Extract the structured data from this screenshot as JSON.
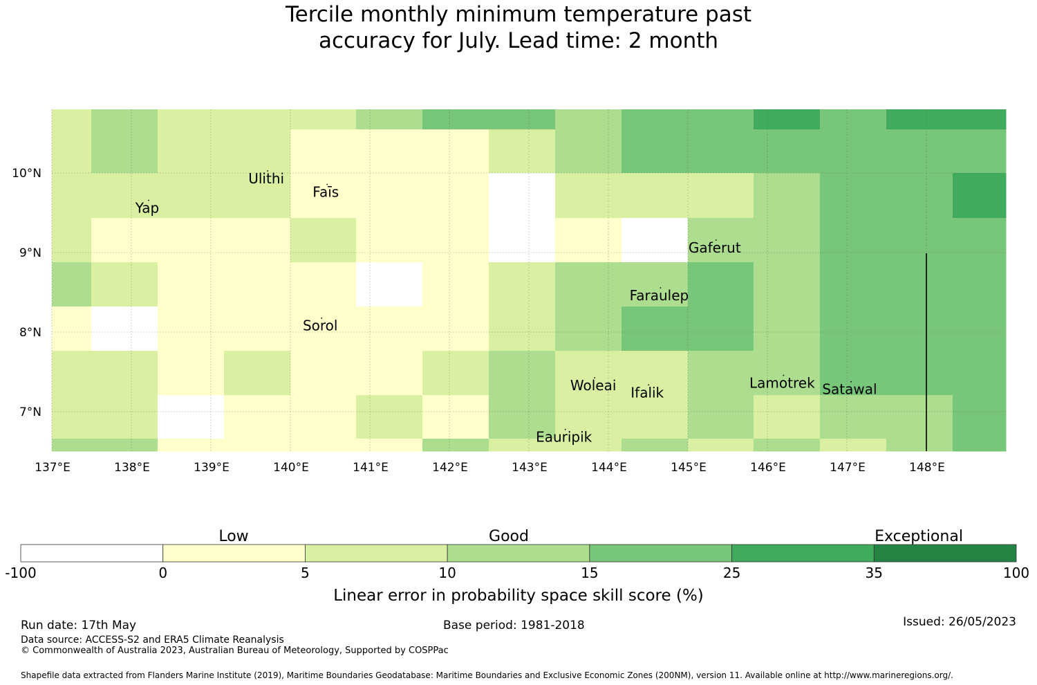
{
  "title_line1": "Tercile monthly minimum temperature past",
  "title_line2": "accuracy for July. Lead time: 2 month",
  "map": {
    "lon_labels": [
      "137°E",
      "138°E",
      "139°E",
      "140°E",
      "141°E",
      "142°E",
      "143°E",
      "144°E",
      "145°E",
      "146°E",
      "147°E",
      "148°E"
    ],
    "lat_labels": [
      "10°N",
      "9°N",
      "8°N",
      "7°N"
    ],
    "lon_values": [
      137,
      138,
      139,
      140,
      141,
      142,
      143,
      144,
      145,
      146,
      147,
      148
    ],
    "lat_values": [
      10,
      9,
      8,
      7
    ],
    "places": [
      {
        "name": "Ulithi",
        "lon": 139.7,
        "lat": 9.87
      },
      {
        "name": "Faīs",
        "lon": 140.45,
        "lat": 9.7
      },
      {
        "name": "Yap",
        "lon": 138.2,
        "lat": 9.5
      },
      {
        "name": "Gaferut",
        "lon": 145.35,
        "lat": 9.0
      },
      {
        "name": "Faraulep",
        "lon": 144.65,
        "lat": 8.4
      },
      {
        "name": "Sorol",
        "lon": 140.38,
        "lat": 8.02
      },
      {
        "name": "Woleai",
        "lon": 143.82,
        "lat": 7.27
      },
      {
        "name": "Ifalik",
        "lon": 144.5,
        "lat": 7.18
      },
      {
        "name": "Lamotrek",
        "lon": 146.2,
        "lat": 7.3
      },
      {
        "name": "Satawal",
        "lon": 147.05,
        "lat": 7.22
      },
      {
        "name": "Eauripik",
        "lon": 143.45,
        "lat": 6.62
      }
    ],
    "grid_rows": [
      [
        2,
        3,
        2,
        2,
        2,
        2,
        3,
        4,
        4,
        4,
        4,
        3,
        3,
        4,
        4,
        4,
        4,
        5,
        5,
        4,
        4,
        5,
        5,
        5
      ],
      [
        2,
        3,
        2,
        2,
        2,
        2,
        1,
        1,
        1,
        1,
        1,
        1,
        2,
        2,
        3,
        3,
        4,
        4,
        4,
        4,
        4,
        4,
        4,
        4
      ],
      [
        2,
        2,
        2,
        2,
        2,
        2,
        1,
        1,
        1,
        1,
        1,
        1,
        0,
        0,
        2,
        2,
        2,
        2,
        2,
        2,
        3,
        3,
        4,
        4,
        4,
        4,
        5
      ],
      [
        2,
        1,
        1,
        1,
        1,
        1,
        2,
        2,
        1,
        1,
        1,
        1,
        0,
        0,
        1,
        1,
        0,
        0,
        3,
        3,
        3,
        3,
        4,
        4,
        4,
        4
      ],
      [
        3,
        2,
        2,
        1,
        1,
        1,
        1,
        1,
        0,
        0,
        1,
        1,
        2,
        2,
        3,
        3,
        3,
        3,
        4,
        4,
        3,
        3,
        4,
        4,
        4,
        4
      ],
      [
        1,
        0,
        0,
        1,
        1,
        1,
        1,
        1,
        1,
        1,
        1,
        1,
        2,
        2,
        3,
        3,
        4,
        4,
        4,
        4,
        3,
        3,
        4,
        4,
        4,
        4
      ],
      [
        2,
        2,
        2,
        1,
        1,
        2,
        2,
        1,
        1,
        1,
        1,
        1,
        2,
        2,
        3,
        3,
        2,
        2,
        2,
        2,
        3,
        3,
        3,
        3,
        4,
        4,
        4,
        4
      ],
      [
        2,
        2,
        2,
        0,
        0,
        1,
        1,
        1,
        1,
        1,
        2,
        2,
        1,
        1,
        3,
        3,
        2,
        2,
        2,
        2,
        3,
        3,
        2,
        2,
        3,
        3,
        3,
        3,
        4,
        4
      ],
      [
        3,
        3,
        3,
        1,
        1,
        1,
        1,
        1,
        1,
        1,
        1,
        1,
        3,
        3,
        2,
        2,
        3,
        3,
        2,
        2,
        2,
        2,
        3,
        3,
        2,
        2,
        3,
        3,
        4,
        4
      ]
    ],
    "cells": [
      {
        "lon0": 137.0,
        "lon1": 137.5,
        "lat0": 10.6,
        "lat1": 10.8,
        "cat": 2
      },
      {
        "lon0": 137.5,
        "lon1": 138.33,
        "lat0": 10.0,
        "lat1": 10.8,
        "cat": 3
      },
      {
        "lon0": 138.33,
        "lon1": 139.17,
        "lat0": 10.6,
        "lat1": 10.8,
        "cat": 2
      },
      {
        "lon0": 139.17,
        "lon1": 140.0,
        "lat0": 10.6,
        "lat1": 10.8,
        "cat": 2
      },
      {
        "lon0": 140.0,
        "lon1": 140.83,
        "lat0": 10.6,
        "lat1": 10.8,
        "cat": 2
      },
      {
        "lon0": 140.83,
        "lon1": 141.67,
        "lat0": 10.6,
        "lat1": 10.8,
        "cat": 3
      },
      {
        "lon0": 141.67,
        "lon1": 142.5,
        "lat0": 10.6,
        "lat1": 10.8,
        "cat": 4
      },
      {
        "lon0": 142.5,
        "lon1": 143.33,
        "lat0": 10.6,
        "lat1": 10.8,
        "cat": 4
      },
      {
        "lon0": 143.33,
        "lon1": 144.17,
        "lat0": 10.6,
        "lat1": 10.8,
        "cat": 3
      },
      {
        "lon0": 144.17,
        "lon1": 145.0,
        "lat0": 10.6,
        "lat1": 10.8,
        "cat": 4
      },
      {
        "lon0": 145.0,
        "lon1": 145.83,
        "lat0": 10.6,
        "lat1": 10.8,
        "cat": 4
      },
      {
        "lon0": 145.83,
        "lon1": 146.67,
        "lat0": 10.6,
        "lat1": 10.8,
        "cat": 5
      },
      {
        "lon0": 146.67,
        "lon1": 147.5,
        "lat0": 10.6,
        "lat1": 10.8,
        "cat": 4
      },
      {
        "lon0": 147.5,
        "lon1": 148.33,
        "lat0": 10.6,
        "lat1": 10.8,
        "cat": 5
      },
      {
        "lon0": 148.33,
        "lon1": 149.0,
        "lat0": 10.6,
        "lat1": 10.8,
        "cat": 5
      }
    ]
  },
  "colorbar": {
    "category_labels": [
      "Low",
      "Good",
      "Exceptional"
    ],
    "ticks": [
      "-100",
      "0",
      "5",
      "10",
      "15",
      "25",
      "35",
      "100"
    ],
    "colors": [
      "#ffffff",
      "#ffffcc",
      "#d9f0a3",
      "#addd8e",
      "#78c679",
      "#41ab5d",
      "#238443"
    ],
    "xlabel": "Linear error in probability space skill score (%)"
  },
  "footer": {
    "run_date": "Run date: 17th May",
    "base_period": "Base period: 1981-2018",
    "issued": "Issued: 26/05/2023",
    "data_source": "Data source: ACCESS-S2 and ERA5 Climate Reanalysis",
    "copyright": "© Commonwealth of Australia 2023, Australian Bureau of Meteorology, Supported by COSPPac",
    "shapefile": "Shapefile data extracted from Flanders Marine Institute (2019), Maritime Boundaries Geodatabase: Maritime Boundaries and Exclusive Economic Zones (200NM), version 11. Available online at http://www.marineregions.org/."
  }
}
